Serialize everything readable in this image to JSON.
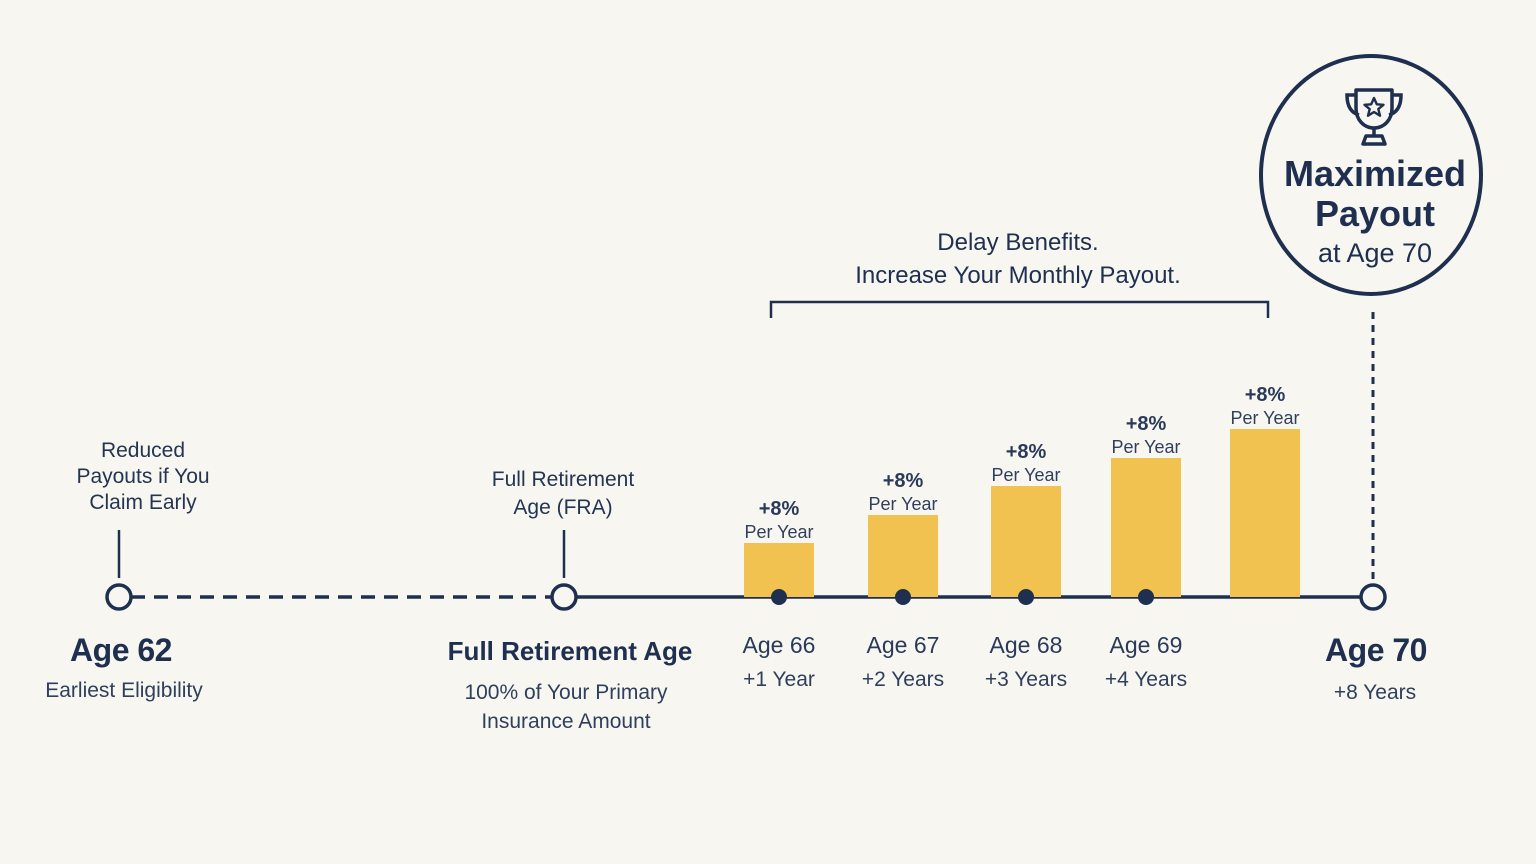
{
  "annotations": {
    "early": [
      "Reduced",
      "Payouts if You",
      "Claim Early"
    ],
    "fra": [
      "Full Retirement",
      "Age (FRA)"
    ]
  },
  "delay_header": [
    "Delay Benefits.",
    "Increase Your Monthly Payout."
  ],
  "milestones": {
    "age62": {
      "title": "Age 62",
      "subtitle": "Earliest Eligibility"
    },
    "fra": {
      "title": "Full Retirement Age",
      "subtitle_lines": [
        "100% of Your Primary",
        "Insurance Amount"
      ]
    },
    "age70": {
      "title": "Age 70",
      "subtitle": "+8 Years"
    }
  },
  "bars": [
    {
      "age": "Age 66",
      "years": "+1 Year",
      "pct": "+8%",
      "per": "Per Year",
      "level": 1
    },
    {
      "age": "Age 67",
      "years": "+2 Years",
      "pct": "+8%",
      "per": "Per Year",
      "level": 2
    },
    {
      "age": "Age 68",
      "years": "+3 Years",
      "pct": "+8%",
      "per": "Per Year",
      "level": 3
    },
    {
      "age": "Age 69",
      "years": "+4 Years",
      "pct": "+8%",
      "per": "Per Year",
      "level": 4
    },
    {
      "age": "",
      "years": "",
      "pct": "+8%",
      "per": "Per Year",
      "level": 5
    }
  ],
  "goal": {
    "icon": "trophy-icon",
    "line1": "Maximized",
    "line2": "Payout",
    "line3": "at Age 70"
  },
  "colors": {
    "navy": "#1e2f4f",
    "bar": "#f1c24f",
    "background": "#f8f6f0"
  }
}
